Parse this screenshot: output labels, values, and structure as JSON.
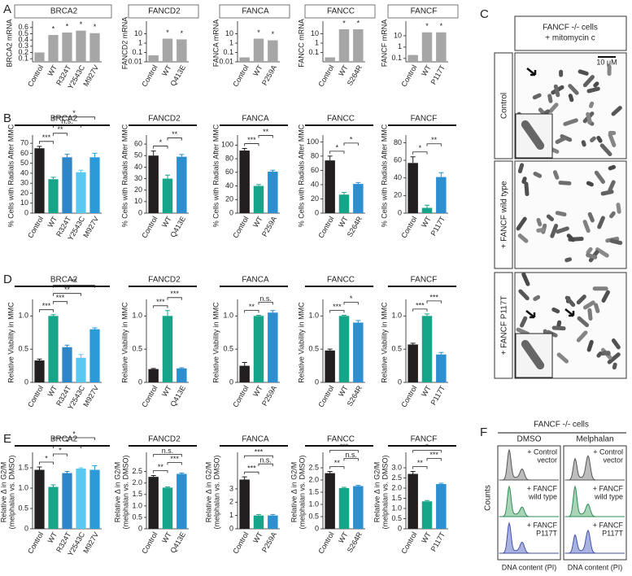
{
  "panel_labels": [
    "A",
    "B",
    "C",
    "D",
    "E",
    "F"
  ],
  "chart_data": [
    {
      "type": "bar",
      "title": "BRCA2",
      "ylabel": "BRCA2 mRNA",
      "categories": [
        "Control",
        "WT",
        "R324T",
        "Y2543C",
        "M927V"
      ],
      "values": [
        0.2,
        0.48,
        0.52,
        0.55,
        0.51
      ],
      "colors": [
        "#a6a6a6",
        "#a6a6a6",
        "#a6a6a6",
        "#a6a6a6",
        "#a6a6a6"
      ],
      "ylim": [
        0.05,
        0.65
      ],
      "yticks": [
        0.1,
        0.2,
        0.3,
        0.4,
        0.5,
        0.6
      ],
      "stars": [
        {
          "at": "WT",
          "text": "*"
        },
        {
          "at": "R324T",
          "text": "*"
        },
        {
          "at": "Y2543C",
          "text": "*"
        },
        {
          "at": "M927V",
          "text": "*"
        }
      ]
    },
    {
      "type": "bar",
      "title": "FANCD2",
      "ylabel": "FANCD2 mRNA",
      "log": true,
      "categories": [
        "Control",
        "WT",
        "Q413E"
      ],
      "values": [
        0.05,
        3,
        2.5
      ],
      "colors": [
        "#a6a6a6",
        "#a6a6a6",
        "#a6a6a6"
      ],
      "ylim": [
        0.01,
        100
      ],
      "yticks": [
        0.01,
        0.1,
        1,
        10
      ],
      "stars": [
        {
          "at": "WT",
          "text": "*"
        },
        {
          "at": "Q413E",
          "text": "*"
        }
      ]
    },
    {
      "type": "bar",
      "title": "FANCA",
      "ylabel": "FANCA mRNA",
      "log": true,
      "categories": [
        "Control",
        "WT",
        "P259A"
      ],
      "values": [
        0.03,
        3,
        2
      ],
      "colors": [
        "#a6a6a6",
        "#a6a6a6",
        "#a6a6a6"
      ],
      "ylim": [
        0.01,
        100
      ],
      "yticks": [
        0.01,
        0.1,
        1,
        10
      ],
      "stars": [
        {
          "at": "WT",
          "text": "*"
        },
        {
          "at": "P259A",
          "text": "*"
        }
      ]
    },
    {
      "type": "bar",
      "title": "FANCC",
      "ylabel": "FANCC mRNA",
      "log": true,
      "categories": [
        "Control",
        "WT",
        "S264R"
      ],
      "values": [
        0.03,
        30,
        30
      ],
      "colors": [
        "#a6a6a6",
        "#a6a6a6",
        "#a6a6a6"
      ],
      "ylim": [
        0.01,
        100
      ],
      "yticks": [
        0.1,
        1,
        10
      ],
      "stars": [
        {
          "at": "WT",
          "text": "*"
        },
        {
          "at": "S264R",
          "text": "*"
        }
      ]
    },
    {
      "type": "bar",
      "title": "FANCF",
      "ylabel": "FANCF mRNA",
      "log": true,
      "categories": [
        "Control",
        "WT",
        "P117T"
      ],
      "values": [
        0.2,
        20,
        20
      ],
      "colors": [
        "#a6a6a6",
        "#a6a6a6",
        "#a6a6a6"
      ],
      "ylim": [
        0.05,
        100
      ],
      "yticks": [
        0.1,
        1,
        10
      ],
      "stars": [
        {
          "at": "WT",
          "text": "*"
        },
        {
          "at": "P117T",
          "text": "*"
        }
      ]
    },
    {
      "type": "bar",
      "title": "BRCA2",
      "ylabel": "% Cells with Radials After MMC",
      "categories": [
        "Control",
        "WT",
        "R324T",
        "Y2543C",
        "M927V"
      ],
      "values": [
        65,
        34,
        56,
        41,
        56
      ],
      "errors": [
        2,
        2,
        3,
        2,
        4
      ],
      "colors": [
        "#231f20",
        "#17a589",
        "#2e86c9",
        "#5bc8f0",
        "#2a9ad8"
      ],
      "ylim": [
        0,
        75
      ],
      "yticks": [
        0,
        10,
        20,
        30,
        40,
        50,
        60,
        70
      ],
      "annotations": [
        {
          "between": [
            "Control",
            "WT"
          ],
          "text": "***"
        },
        {
          "between": [
            "WT",
            "R324T"
          ],
          "text": "**"
        },
        {
          "between": [
            "WT",
            "Y2543C"
          ],
          "text": "n.s."
        },
        {
          "between": [
            "WT",
            "M927V"
          ],
          "text": "*"
        }
      ]
    },
    {
      "type": "bar",
      "title": "FANCD2",
      "ylabel": "% Cells with Radials After MMC",
      "categories": [
        "Control",
        "WT",
        "Q413E"
      ],
      "values": [
        50,
        30,
        49
      ],
      "errors": [
        4,
        3,
        2
      ],
      "colors": [
        "#231f20",
        "#17a589",
        "#2b8fd0"
      ],
      "ylim": [
        0,
        65
      ],
      "yticks": [
        0,
        10,
        20,
        30,
        40,
        50,
        60
      ],
      "annotations": [
        {
          "between": [
            "Control",
            "WT"
          ],
          "text": "*"
        },
        {
          "between": [
            "WT",
            "Q413E"
          ],
          "text": "**"
        }
      ]
    },
    {
      "type": "bar",
      "title": "FANCA",
      "ylabel": "% Cells with Radials After MMC",
      "categories": [
        "Control",
        "WT",
        "P259A"
      ],
      "values": [
        92,
        40,
        61
      ],
      "errors": [
        3,
        2,
        2
      ],
      "colors": [
        "#231f20",
        "#17a589",
        "#2b8fd0"
      ],
      "ylim": [
        0,
        110
      ],
      "yticks": [
        0,
        20,
        40,
        60,
        80,
        100
      ],
      "annotations": [
        {
          "between": [
            "Control",
            "WT"
          ],
          "text": "***"
        },
        {
          "between": [
            "WT",
            "P259A"
          ],
          "text": "**"
        }
      ]
    },
    {
      "type": "bar",
      "title": "FANCC",
      "ylabel": "% Cells with Radials After MMC",
      "categories": [
        "Control",
        "WT",
        "S264R"
      ],
      "values": [
        74,
        26,
        41
      ],
      "errors": [
        6,
        3,
        2
      ],
      "colors": [
        "#231f20",
        "#17a589",
        "#2b8fd0"
      ],
      "ylim": [
        0,
        105
      ],
      "yticks": [
        0,
        20,
        40,
        60,
        80,
        100
      ],
      "annotations": [
        {
          "between": [
            "Control",
            "WT"
          ],
          "text": "*"
        },
        {
          "between": [
            "WT",
            "S264R"
          ],
          "text": "*"
        }
      ]
    },
    {
      "type": "bar",
      "title": "FANCF",
      "ylabel": "% Cells with Radials After MMC",
      "categories": [
        "Control",
        "WT",
        "P117T"
      ],
      "values": [
        57,
        6,
        41
      ],
      "errors": [
        7,
        3,
        5
      ],
      "colors": [
        "#231f20",
        "#17a589",
        "#2b8fd0"
      ],
      "ylim": [
        0,
        85
      ],
      "yticks": [
        0,
        20,
        40,
        60,
        80
      ],
      "annotations": [
        {
          "between": [
            "Control",
            "WT"
          ],
          "text": "*"
        },
        {
          "between": [
            "WT",
            "P117T"
          ],
          "text": "**"
        }
      ]
    },
    {
      "type": "bar",
      "title": "BRCA2",
      "ylabel": "Relative Viability in MMC",
      "categories": [
        "Control",
        "WT",
        "R324T",
        "Y2543C",
        "M927V"
      ],
      "values": [
        0.33,
        1.0,
        0.53,
        0.37,
        0.8
      ],
      "errors": [
        0.02,
        0.02,
        0.03,
        0.05,
        0.02
      ],
      "colors": [
        "#231f20",
        "#17a589",
        "#2e86c9",
        "#5bc8f0",
        "#2a9ad8"
      ],
      "ylim": [
        0,
        1.2
      ],
      "yticks": [
        0,
        0.5,
        {
          "value": 1,
          "label": "1.0"
        }
      ],
      "annotations": [
        {
          "between": [
            "Control",
            "WT"
          ],
          "text": "***"
        },
        {
          "between": [
            "WT",
            "R324T"
          ],
          "text": "***"
        },
        {
          "between": [
            "WT",
            "Y2543C"
          ],
          "text": "**"
        },
        {
          "between": [
            "WT",
            "M927V"
          ],
          "text": "**"
        }
      ]
    },
    {
      "type": "bar",
      "title": "FANCD2",
      "ylabel": "Relative Viability in MMC",
      "categories": [
        "Control",
        "WT",
        "Q413E"
      ],
      "values": [
        0.2,
        1.0,
        0.21
      ],
      "errors": [
        0.01,
        0.08,
        0.01
      ],
      "colors": [
        "#231f20",
        "#17a589",
        "#2b8fd0"
      ],
      "ylim": [
        0,
        1.2
      ],
      "yticks": [
        0,
        0.5,
        {
          "value": 1,
          "label": "1.0"
        }
      ],
      "annotations": [
        {
          "between": [
            "Control",
            "WT"
          ],
          "text": "***"
        },
        {
          "between": [
            "WT",
            "Q413E"
          ],
          "text": "***"
        }
      ]
    },
    {
      "type": "bar",
      "title": "FANCA",
      "ylabel": "Relative Viability in MMC",
      "categories": [
        "Control",
        "WT",
        "P259A"
      ],
      "values": [
        0.25,
        1.0,
        1.05
      ],
      "errors": [
        0.05,
        0.01,
        0.03
      ],
      "colors": [
        "#231f20",
        "#17a589",
        "#2b8fd0"
      ],
      "ylim": [
        0,
        1.2
      ],
      "yticks": [
        0,
        0.5,
        {
          "value": 1,
          "label": "1.0"
        }
      ],
      "annotations": [
        {
          "between": [
            "Control",
            "WT"
          ],
          "text": "**"
        },
        {
          "between": [
            "WT",
            "P259A"
          ],
          "text": "n.s."
        }
      ]
    },
    {
      "type": "bar",
      "title": "FANCC",
      "ylabel": "Relative Viability in MMC",
      "categories": [
        "Control",
        "WT",
        "S264R"
      ],
      "values": [
        0.48,
        1.0,
        0.9
      ],
      "errors": [
        0.02,
        0.01,
        0.03
      ],
      "colors": [
        "#231f20",
        "#17a589",
        "#2b8fd0"
      ],
      "ylim": [
        0,
        1.2
      ],
      "yticks": [
        0,
        0.5,
        {
          "value": 1,
          "label": "1.0"
        }
      ],
      "annotations": [
        {
          "between": [
            "Control",
            "WT"
          ],
          "text": "***"
        },
        {
          "between": [
            "WT",
            "S264R"
          ],
          "text": "*"
        }
      ]
    },
    {
      "type": "bar",
      "title": "FANCF",
      "ylabel": "Relative Viability in MMC",
      "categories": [
        "Control",
        "WT",
        "P117T"
      ],
      "values": [
        0.57,
        1.0,
        0.42
      ],
      "errors": [
        0.02,
        0.03,
        0.03
      ],
      "colors": [
        "#231f20",
        "#17a589",
        "#2b8fd0"
      ],
      "ylim": [
        0,
        1.2
      ],
      "yticks": [
        0,
        0.5,
        {
          "value": 1,
          "label": "1.0"
        }
      ],
      "annotations": [
        {
          "between": [
            "Control",
            "WT"
          ],
          "text": "***"
        },
        {
          "between": [
            "WT",
            "P117T"
          ],
          "text": "***"
        }
      ]
    },
    {
      "type": "bar",
      "title": "BRCA2",
      "ylabel": [
        "Relative Δ in G2/M",
        "(melphalan vs. DMSO)"
      ],
      "categories": [
        "Control",
        "WT",
        "R324T",
        "Y2543C",
        "M927V"
      ],
      "values": [
        1.45,
        1.03,
        1.37,
        1.48,
        1.45
      ],
      "errors": [
        0.07,
        0.05,
        0.04,
        0.02,
        0.1
      ],
      "colors": [
        "#231f20",
        "#17a589",
        "#2e86c9",
        "#5bc8f0",
        "#2a9ad8"
      ],
      "ylim": [
        0,
        1.8
      ],
      "yticks": [
        0,
        0.5,
        {
          "value": 1,
          "label": "1.0"
        },
        1.5
      ],
      "annotations": [
        {
          "between": [
            "Control",
            "WT"
          ],
          "text": "*"
        },
        {
          "between": [
            "WT",
            "R324T"
          ],
          "text": "*"
        },
        {
          "between": [
            "WT",
            "Y2543C"
          ],
          "text": "*"
        },
        {
          "between": [
            "WT",
            "M927V"
          ],
          "text": "*"
        }
      ]
    },
    {
      "type": "bar",
      "title": "FANCD2",
      "ylabel": [
        "Relative Δ in G2/M",
        "(melphalan vs. DMSO)"
      ],
      "categories": [
        "Control",
        "WT",
        "Q413E"
      ],
      "values": [
        2.27,
        1.8,
        2.4
      ],
      "errors": [
        0.06,
        0.03,
        0.04
      ],
      "colors": [
        "#231f20",
        "#17a589",
        "#2b8fd0"
      ],
      "ylim": [
        0,
        3.2
      ],
      "yticks": [
        0,
        0.5,
        {
          "value": 1,
          "label": "1.0"
        },
        1.5,
        {
          "value": 2,
          "label": "2.0"
        },
        2.5
      ],
      "annotations": [
        {
          "between": [
            "Control",
            "WT"
          ],
          "text": "**"
        },
        {
          "between": [
            "WT",
            "Q413E"
          ],
          "text": "***"
        },
        {
          "between": [
            "Control",
            "Q413E"
          ],
          "text": "n.s."
        }
      ]
    },
    {
      "type": "bar",
      "title": "FANCA",
      "ylabel": [
        "Relative Δ in G2/M",
        "(melphalan vs. DMSO)"
      ],
      "categories": [
        "Control",
        "WT",
        "P259A"
      ],
      "values": [
        3.7,
        1.0,
        1.0
      ],
      "errors": [
        0.2,
        0.08,
        0.08
      ],
      "colors": [
        "#231f20",
        "#17a589",
        "#2b8fd0"
      ],
      "ylim": [
        0,
        5.5
      ],
      "yticks": [
        0,
        1,
        2,
        3
      ],
      "annotations": [
        {
          "between": [
            "Control",
            "WT"
          ],
          "text": "***"
        },
        {
          "between": [
            "WT",
            "P259A"
          ],
          "text": "n.s."
        },
        {
          "between": [
            "Control",
            "P259A"
          ],
          "text": "***"
        }
      ]
    },
    {
      "type": "bar",
      "title": "FANCC",
      "ylabel": [
        "Relative Δ in G2/M",
        "(melphalan vs. DMSO)"
      ],
      "categories": [
        "Control",
        "WT",
        "S264R"
      ],
      "values": [
        2.28,
        1.67,
        1.75
      ],
      "errors": [
        0.07,
        0.03,
        0.03
      ],
      "colors": [
        "#231f20",
        "#17a589",
        "#2b8fd0"
      ],
      "ylim": [
        0,
        3.0
      ],
      "yticks": [
        0,
        0.5,
        {
          "value": 1,
          "label": "1.0"
        },
        1.5,
        {
          "value": 2,
          "label": "2.0"
        },
        2.5
      ],
      "annotations": [
        {
          "between": [
            "Control",
            "WT"
          ],
          "text": "**"
        },
        {
          "between": [
            "WT",
            "S264R"
          ],
          "text": "n.s."
        },
        {
          "between": [
            "Control",
            "S264R"
          ],
          "text": "***"
        }
      ]
    },
    {
      "type": "bar",
      "title": "FANCF",
      "ylabel": [
        "Relative Δ in G2/M",
        "(melphalan vs. DMSO)"
      ],
      "categories": [
        "Control",
        "WT",
        "P117T"
      ],
      "values": [
        2.7,
        1.35,
        2.2
      ],
      "errors": [
        0.12,
        0.04,
        0.04
      ],
      "colors": [
        "#231f20",
        "#17a589",
        "#2b8fd0"
      ],
      "ylim": [
        0,
        3.6
      ],
      "yticks": [
        0,
        0.5,
        {
          "value": 1,
          "label": "1.0"
        },
        1.5,
        {
          "value": 2,
          "label": "2.0"
        },
        2.5,
        {
          "value": 3,
          "label": "3.0"
        }
      ],
      "annotations": [
        {
          "between": [
            "Control",
            "WT"
          ],
          "text": "**"
        },
        {
          "between": [
            "WT",
            "P117T"
          ],
          "text": "***"
        },
        {
          "between": [
            "Control",
            "P117T"
          ],
          "text": "*"
        }
      ]
    }
  ],
  "panel_c": {
    "header": [
      "FANCF -/- cells",
      "+ mitomycin c"
    ],
    "scale_bar": "10 μM",
    "rows": [
      "Control",
      "+ FANCF wild type",
      "+ FANCF P117T"
    ]
  },
  "panel_f": {
    "title": "FANCF -/- cells",
    "columns": [
      "DMSO",
      "Melphalan"
    ],
    "ylabel": "Counts",
    "xlabel": "DNA content (PI)",
    "rows": [
      [
        "+ Control",
        "vector"
      ],
      [
        "+ FANCF",
        "wild type"
      ],
      [
        "+ FANCF",
        "P117T"
      ]
    ]
  }
}
